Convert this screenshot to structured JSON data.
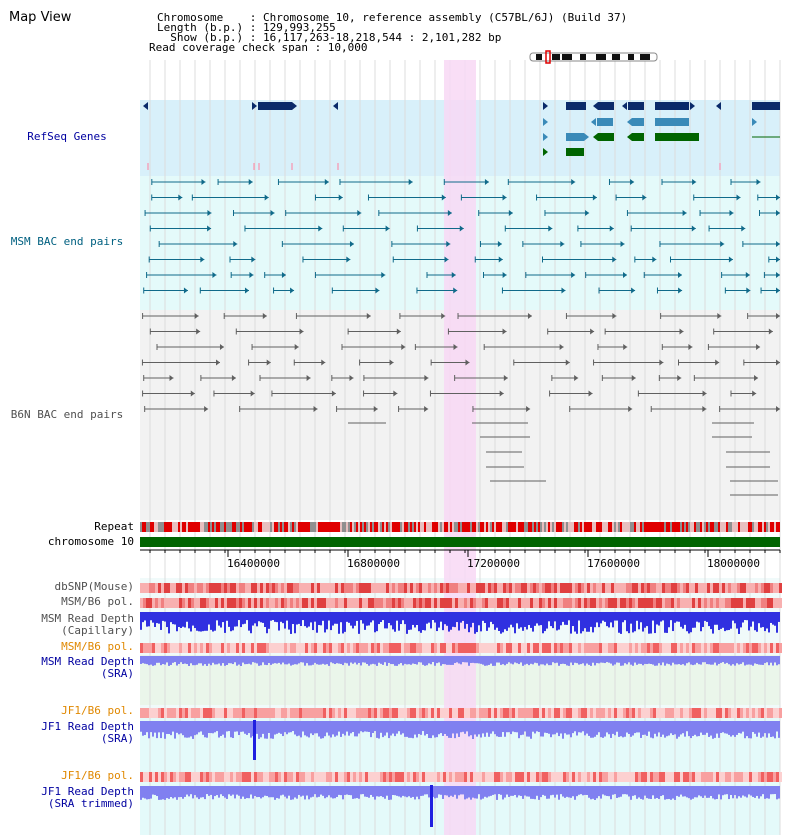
{
  "header": {
    "title": "Map View",
    "chromosome_line": "Chromosome    : Chromosome 10, reference assembly (C57BL/6J) (Build 37)",
    "length_line": "Length (b.p.) : 129,993,255",
    "show_line": "  Show (b.p.) : 16,117,263-18,218,544 : 2,101,282 bp",
    "coverage_line": "Read coverage check span : 10,000"
  },
  "tracks": {
    "refseq": "RefSeq Genes",
    "msm_bac": "MSM BAC end pairs",
    "b6n_bac": "B6N BAC end pairs",
    "repeat": "Repeat",
    "chromosome": "chromosome 10",
    "dbsnp": "dbSNP(Mouse)",
    "msm_pol_1": "MSM/B6 pol.",
    "msm_depth_cap_1": "MSM Read Depth",
    "msm_depth_cap_2": "(Capillary)",
    "msm_pol_2": "MSM/B6 pol.",
    "msm_depth_sra_1": "MSM Read Depth",
    "msm_depth_sra_2": "(SRA)",
    "jf1_pol_1": "JF1/B6 pol.",
    "jf1_depth_sra_1": "JF1 Read Depth",
    "jf1_depth_sra_2": "(SRA)",
    "jf1_pol_2": "JF1/B6 pol.",
    "jf1_depth_trim_1": "JF1 Read Depth",
    "jf1_depth_trim_2": "(SRA trimmed)"
  },
  "axis": {
    "ticks": [
      "16400000",
      "16800000",
      "17200000",
      "17600000",
      "18000000"
    ]
  },
  "colors": {
    "refseq_bg": "#d8f0fa",
    "bac_bg": "#e4fafa",
    "b6n_bg": "#f2f2f2",
    "highlight": "#f8d8f4",
    "gene_dark": "#0a2a6a",
    "gene_mid": "#3a8ab8",
    "gene_green": "#006400",
    "msm_pair": "#106a8a",
    "b6n_pair": "#606060",
    "chromosome_bar": "#006400",
    "repeat_red": "#e00000",
    "depth_blue": "#2020e0",
    "depth_light": "#8080f0"
  }
}
